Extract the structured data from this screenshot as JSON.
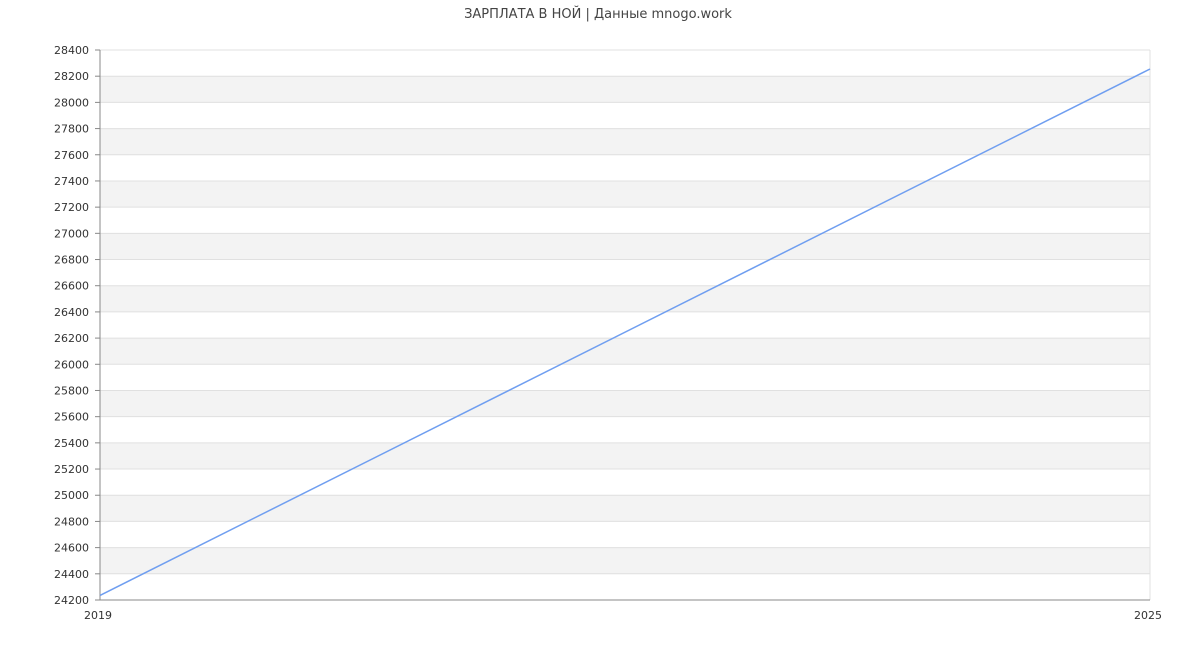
{
  "chart_data": {
    "type": "line",
    "title": "ЗАРПЛАТА В НОЙ | Данные mnogo.work",
    "xlabel": "",
    "ylabel": "",
    "x_ticks": [
      "2019",
      "2025"
    ],
    "xlim": [
      2019,
      2025
    ],
    "ylim": [
      24200,
      28400
    ],
    "y_step": 200,
    "grid": true,
    "series": [
      {
        "x": [
          2019,
          2025
        ],
        "values": [
          24235,
          28255
        ],
        "color": "#6f9ef0"
      }
    ],
    "colors": {
      "band": "#f3f3f3",
      "grid": "#e0e0e0",
      "axis": "#888888",
      "text": "#333333"
    }
  }
}
